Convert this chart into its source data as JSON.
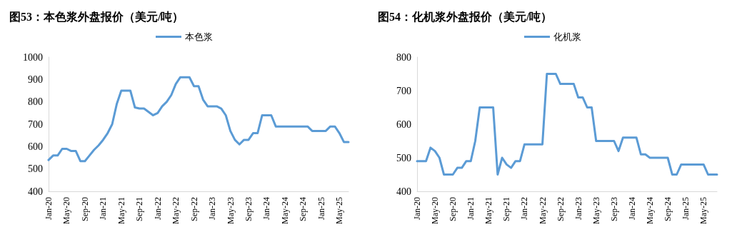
{
  "chart_data": [
    {
      "type": "line",
      "title": "图53：本色浆外盘报价（美元/吨）",
      "legend": "top",
      "grid": false,
      "marker": "none",
      "ylim": [
        400,
        1000
      ],
      "yticks": [
        400,
        500,
        600,
        700,
        800,
        900,
        1000
      ],
      "categories": [
        "Jan-20",
        null,
        null,
        null,
        "May-20",
        null,
        null,
        null,
        "Sep-20",
        null,
        null,
        null,
        "Jan-21",
        null,
        null,
        null,
        "May-21",
        null,
        null,
        null,
        "Sep-21",
        null,
        null,
        null,
        "Jan-22",
        null,
        null,
        null,
        "May-22",
        null,
        null,
        null,
        "Sep-22",
        null,
        null,
        null,
        "Jan-23",
        null,
        null,
        null,
        "May-23",
        null,
        null,
        null,
        "Sep-23",
        null,
        null,
        null,
        "Jan-24",
        null,
        null,
        null,
        "May-24",
        null,
        null,
        null,
        "Sep-24",
        null,
        null,
        null,
        "Jan-25",
        null,
        null,
        null,
        "May-25",
        null,
        null
      ],
      "series": [
        {
          "name": "本色浆",
          "color": "#5b9bd5",
          "values": [
            540,
            560,
            560,
            590,
            590,
            580,
            580,
            535,
            535,
            560,
            585,
            605,
            630,
            660,
            700,
            790,
            850,
            850,
            850,
            775,
            770,
            770,
            755,
            740,
            750,
            780,
            800,
            830,
            880,
            910,
            910,
            910,
            870,
            870,
            810,
            780,
            780,
            780,
            770,
            740,
            670,
            630,
            610,
            630,
            630,
            660,
            660,
            740,
            740,
            740,
            690,
            690,
            690,
            690,
            690,
            690,
            690,
            690,
            670,
            670,
            670,
            670,
            690,
            690,
            660,
            620,
            620
          ]
        }
      ]
    },
    {
      "type": "line",
      "title": "图54：化机浆外盘报价（美元/吨）",
      "legend": "top",
      "grid": false,
      "marker": "none",
      "ylim": [
        400,
        800
      ],
      "yticks": [
        400,
        500,
        600,
        700,
        800
      ],
      "categories": [
        "Jan-20",
        null,
        null,
        null,
        "May-20",
        null,
        null,
        null,
        "Sep-20",
        null,
        null,
        null,
        "Jan-21",
        null,
        null,
        null,
        "May-21",
        null,
        null,
        null,
        "Sep-21",
        null,
        null,
        null,
        "Jan-22",
        null,
        null,
        null,
        "May-22",
        null,
        null,
        null,
        "Sep-22",
        null,
        null,
        null,
        "Jan-23",
        null,
        null,
        null,
        "May-23",
        null,
        null,
        null,
        "Sep-23",
        null,
        null,
        null,
        "Jan-24",
        null,
        null,
        null,
        "May-24",
        null,
        null,
        null,
        "Sep-24",
        null,
        null,
        null,
        "Jan-25",
        null,
        null,
        null,
        "May-25",
        null,
        null,
        null
      ],
      "series": [
        {
          "name": "化机浆",
          "color": "#5b9bd5",
          "values": [
            490,
            490,
            490,
            530,
            520,
            500,
            450,
            450,
            450,
            470,
            470,
            490,
            490,
            550,
            650,
            650,
            650,
            650,
            450,
            500,
            480,
            470,
            490,
            490,
            540,
            540,
            540,
            540,
            540,
            750,
            750,
            750,
            720,
            720,
            720,
            720,
            680,
            680,
            650,
            650,
            550,
            550,
            550,
            550,
            550,
            520,
            560,
            560,
            560,
            560,
            510,
            510,
            500,
            500,
            500,
            500,
            500,
            450,
            450,
            480,
            480,
            480,
            480,
            480,
            480,
            450,
            450,
            450
          ]
        }
      ]
    }
  ]
}
